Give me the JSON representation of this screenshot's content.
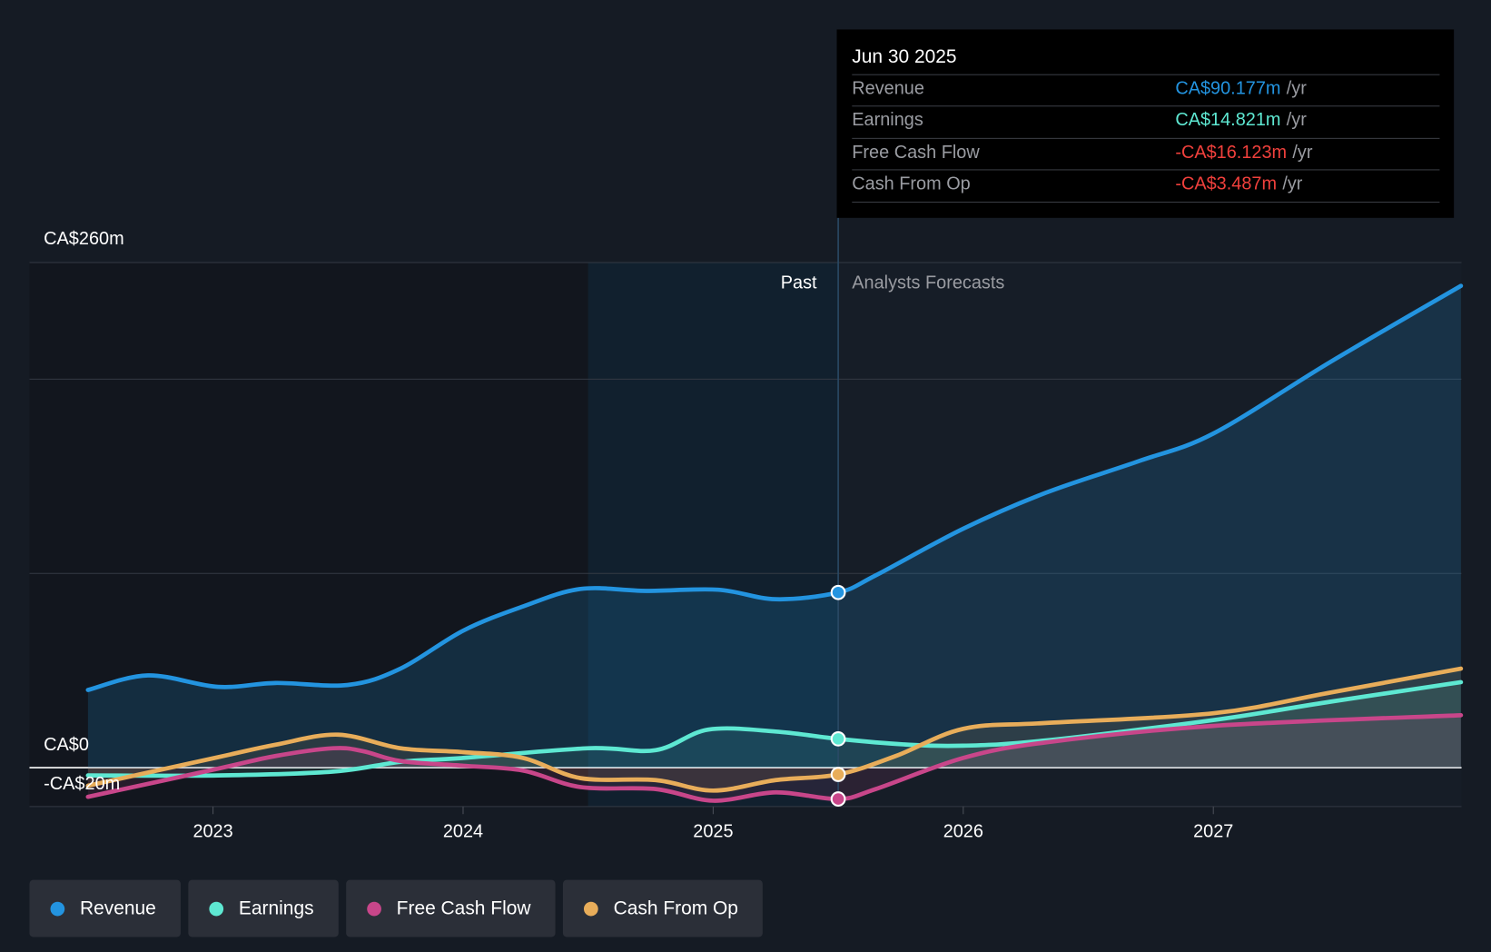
{
  "tooltip": {
    "date": "Jun 30 2025",
    "rows": [
      {
        "label": "Revenue",
        "value": "CA$90.177m",
        "unit": "/yr",
        "color": "#2394e0"
      },
      {
        "label": "Earnings",
        "value": "CA$14.821m",
        "unit": "/yr",
        "color": "#5ee8d2"
      },
      {
        "label": "Free Cash Flow",
        "value": "-CA$16.123m",
        "unit": "/yr",
        "color": "#f0403c"
      },
      {
        "label": "Cash From Op",
        "value": "-CA$3.487m",
        "unit": "/yr",
        "color": "#f0403c"
      }
    ]
  },
  "regions": {
    "past": "Past",
    "forecast": "Analysts Forecasts"
  },
  "legend": [
    {
      "label": "Revenue",
      "color": "#2394e0"
    },
    {
      "label": "Earnings",
      "color": "#5ee8d2"
    },
    {
      "label": "Free Cash Flow",
      "color": "#c8468a"
    },
    {
      "label": "Cash From Op",
      "color": "#e8ad5a"
    }
  ],
  "chart_data": {
    "type": "line",
    "title": "",
    "xlabel": "",
    "ylabel": "",
    "y_tick_labels": [
      "CA$260m",
      "CA$0",
      "-CA$20m"
    ],
    "y_ticks": [
      260,
      0,
      -20
    ],
    "ylim": [
      -20,
      260
    ],
    "xlim": [
      2022.5,
      2028.0
    ],
    "x_ticks": [
      2023,
      2024,
      2025,
      2026,
      2027
    ],
    "x_tick_labels": [
      "2023",
      "2024",
      "2025",
      "2026",
      "2027"
    ],
    "gridlines": [
      260,
      200,
      100,
      0,
      -20
    ],
    "divider_x": 2025.5,
    "past_highlight_start": 2024.5,
    "series": [
      {
        "name": "Revenue",
        "color": "#2394e0",
        "x": [
          2022.5,
          2022.74,
          2023.02,
          2023.25,
          2023.54,
          2023.75,
          2024.0,
          2024.24,
          2024.47,
          2024.73,
          2025.02,
          2025.25,
          2025.5,
          2025.65,
          2026.0,
          2026.33,
          2026.7,
          2027.0,
          2027.47,
          2027.99
        ],
        "y": [
          40,
          47.5,
          41.6,
          43.6,
          42.6,
          51,
          70.5,
          83,
          92,
          91,
          91.6,
          86.7,
          90.177,
          99,
          123,
          141.5,
          157.7,
          172,
          209,
          248
        ]
      },
      {
        "name": "Earnings",
        "color": "#5ee8d2",
        "x": [
          2022.5,
          2023.02,
          2023.48,
          2023.75,
          2024.0,
          2024.5,
          2024.77,
          2024.98,
          2025.25,
          2025.5,
          2025.76,
          2026.0,
          2026.33,
          2027.0,
          2027.47,
          2027.99
        ],
        "y": [
          -4,
          -4,
          -2,
          3,
          5,
          10,
          9,
          19.6,
          18.6,
          14.821,
          12,
          11.3,
          14,
          24.5,
          34,
          44
        ]
      },
      {
        "name": "Free Cash Flow",
        "color": "#c8468a",
        "x": [
          2022.5,
          2023.02,
          2023.25,
          2023.48,
          2023.6,
          2023.75,
          2024.0,
          2024.24,
          2024.47,
          2024.77,
          2025.0,
          2025.25,
          2025.5,
          2025.65,
          2026.0,
          2026.33,
          2027.0,
          2027.99
        ],
        "y": [
          -15,
          -0.5,
          6,
          10,
          8.5,
          3.4,
          1,
          -1.5,
          -10,
          -11,
          -17,
          -12.7,
          -16.123,
          -11,
          5,
          13,
          21.5,
          27
        ]
      },
      {
        "name": "Cash From Op",
        "color": "#e8ad5a",
        "x": [
          2022.5,
          2023.02,
          2023.25,
          2023.5,
          2023.75,
          2024.0,
          2024.24,
          2024.47,
          2024.77,
          2025.0,
          2025.25,
          2025.5,
          2025.73,
          2026.0,
          2026.33,
          2027.0,
          2027.47,
          2027.99
        ],
        "y": [
          -9.3,
          5.4,
          11.8,
          17,
          10,
          8,
          5,
          -5.4,
          -6.4,
          -11.8,
          -6.4,
          -3.487,
          6,
          20,
          23,
          28,
          38.7,
          51
        ]
      }
    ]
  }
}
